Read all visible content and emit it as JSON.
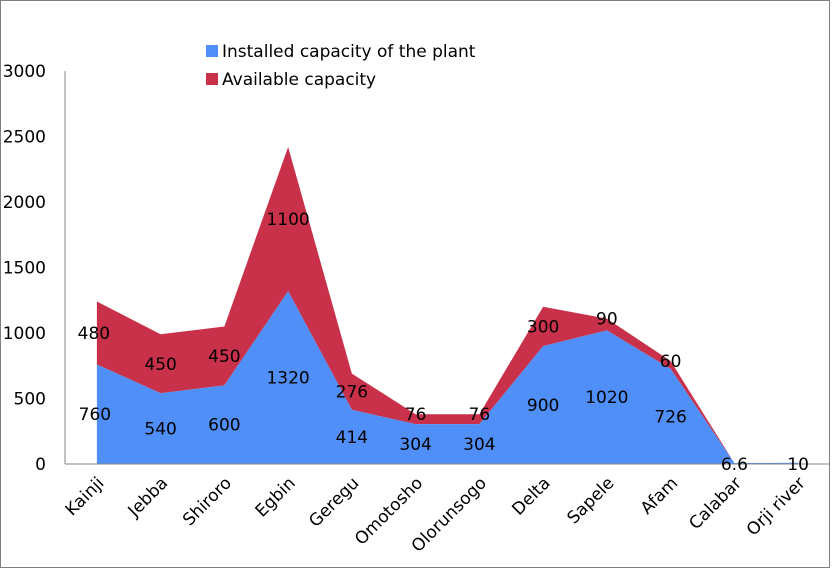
{
  "chart_data": {
    "type": "area",
    "stacked": true,
    "title": "",
    "xlabel": "",
    "ylabel": "",
    "categories": [
      "Kainji",
      "Jebba",
      "Shiroro",
      "Egbin",
      "Geregu",
      "Omotosho",
      "Olorunsogo",
      "Delta",
      "Sapele",
      "Afam",
      "Calabar",
      "Orji river"
    ],
    "series": [
      {
        "name": "Installed capacity of the plant",
        "color": "#4f8ff7",
        "values": [
          760,
          540,
          600,
          1320,
          414,
          304,
          304,
          900,
          1020,
          726,
          6.6,
          10
        ]
      },
      {
        "name": "Available capacity",
        "color": "#c9304a",
        "values": [
          480,
          450,
          450,
          1100,
          276,
          76,
          76,
          300,
          90,
          60,
          null,
          null
        ]
      }
    ],
    "ylim": [
      0,
      3000
    ],
    "yticks": [
      0,
      500,
      1000,
      1500,
      2000,
      2500,
      3000
    ],
    "grid": false,
    "legend_position": "top-center"
  }
}
